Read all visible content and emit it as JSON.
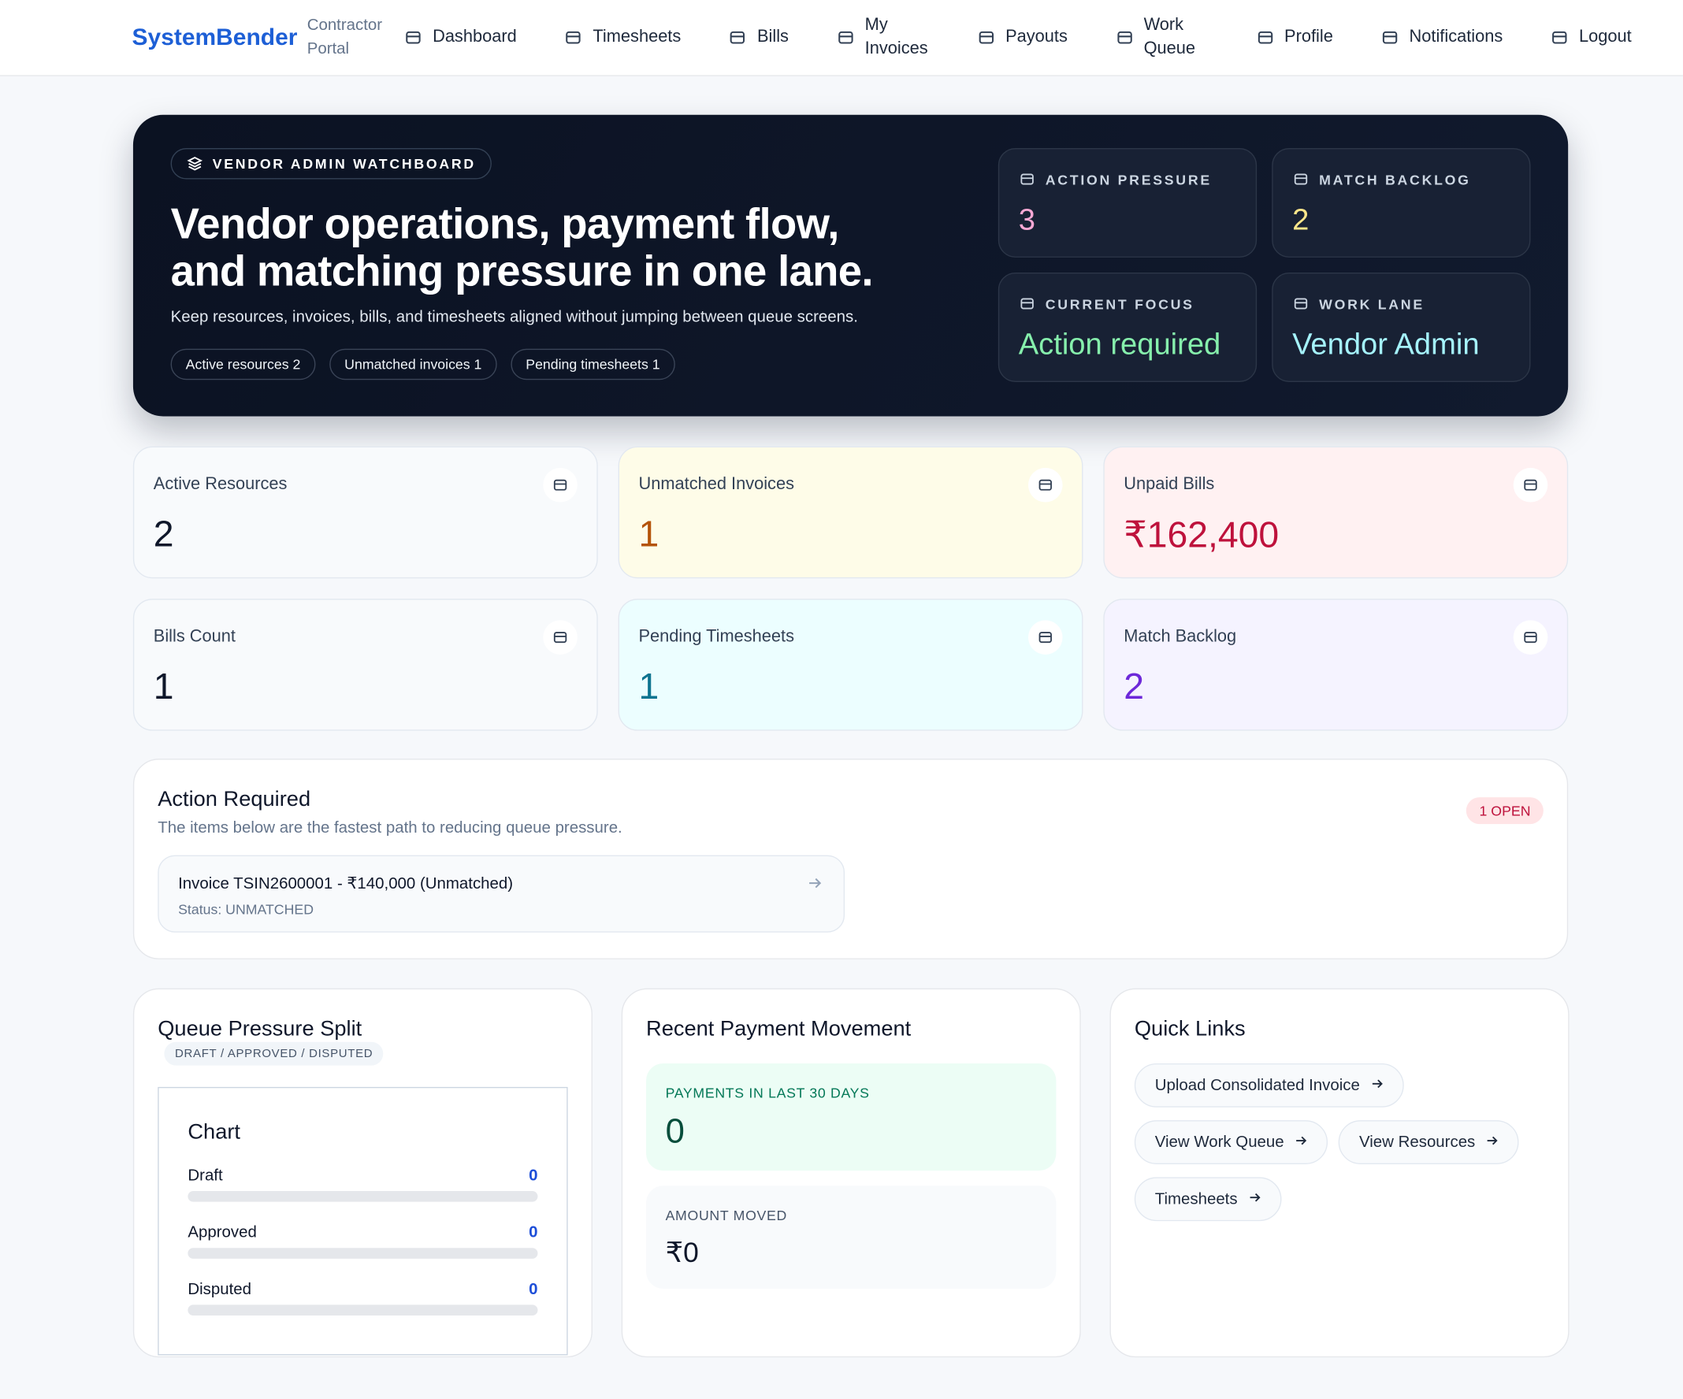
{
  "nav": {
    "brand": "SystemBender",
    "sub": "Contractor Portal",
    "items": [
      "Dashboard",
      "Timesheets",
      "Bills",
      "My Invoices",
      "Payouts",
      "Work Queue",
      "Profile",
      "Notifications",
      "Logout"
    ]
  },
  "hero": {
    "badge": "VENDOR ADMIN WATCHBOARD",
    "title": "Vendor operations, payment flow, and matching pressure in one lane.",
    "subtitle": "Keep resources, invoices, bills, and timesheets aligned without jumping between queue screens.",
    "chips": [
      "Active resources 2",
      "Unmatched invoices 1",
      "Pending timesheets 1"
    ],
    "tiles": [
      {
        "label": "ACTION PRESSURE",
        "value": "3"
      },
      {
        "label": "MATCH BACKLOG",
        "value": "2"
      },
      {
        "label": "CURRENT FOCUS",
        "value": "Action required"
      },
      {
        "label": "WORK LANE",
        "value": "Vendor Admin"
      }
    ]
  },
  "stats": [
    {
      "label": "Active Resources",
      "value": "2"
    },
    {
      "label": "Unmatched Invoices",
      "value": "1"
    },
    {
      "label": "Unpaid Bills",
      "value": "₹162,400"
    },
    {
      "label": "Bills Count",
      "value": "1"
    },
    {
      "label": "Pending Timesheets",
      "value": "1"
    },
    {
      "label": "Match Backlog",
      "value": "2"
    }
  ],
  "action": {
    "title": "Action Required",
    "subtitle": "The items below are the fastest path to reducing queue pressure.",
    "badge": "1 OPEN",
    "item": {
      "title": "Invoice TSIN2600001 - ₹140,000 (Unmatched)",
      "status": "Status: UNMATCHED"
    }
  },
  "queue": {
    "title": "Queue Pressure Split",
    "tag": "DRAFT / APPROVED / DISPUTED",
    "chart_title": "Chart",
    "rows": [
      {
        "label": "Draft",
        "value": 0
      },
      {
        "label": "Approved",
        "value": 0
      },
      {
        "label": "Disputed",
        "value": 0
      }
    ]
  },
  "payments": {
    "title": "Recent Payment Movement",
    "recent_label": "PAYMENTS IN LAST 30 DAYS",
    "recent_value": "0",
    "amount_label": "AMOUNT MOVED",
    "amount_value": "₹0"
  },
  "links": {
    "title": "Quick Links",
    "items": [
      "Upload Consolidated Invoice",
      "View Work Queue",
      "View Resources",
      "Timesheets"
    ]
  }
}
